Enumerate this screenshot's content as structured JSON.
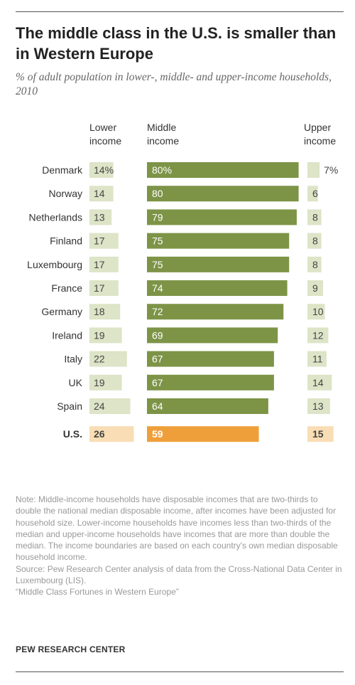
{
  "title": "The middle class in the U.S. is smaller than in Western Europe",
  "subtitle": "% of adult population in lower-, middle- and upper-income households, 2010",
  "column_headers": {
    "lower": [
      "Lower",
      "income"
    ],
    "middle": [
      "Middle",
      "income"
    ],
    "upper": [
      "Upper",
      "income"
    ]
  },
  "colors": {
    "lower_bar": "#dde4c7",
    "middle_bar": "#7d9447",
    "upper_bar": "#dde4c7",
    "us_lower_bar": "#f9ddb5",
    "us_middle_bar": "#ef9f3a",
    "us_upper_bar": "#f9ddb5",
    "label_dark": "#444444",
    "label_light": "#ffffff"
  },
  "chart_data": {
    "type": "bar",
    "title": "The middle class in the U.S. is smaller than in Western Europe",
    "categories": [
      "Denmark",
      "Norway",
      "Netherlands",
      "Finland",
      "Luxembourg",
      "France",
      "Germany",
      "Ireland",
      "Italy",
      "UK",
      "Spain",
      "U.S."
    ],
    "value_labels": {
      "lower": [
        "14%",
        "14",
        "13",
        "17",
        "17",
        "17",
        "18",
        "19",
        "22",
        "19",
        "24",
        "26"
      ],
      "middle": [
        "80%",
        "80",
        "79",
        "75",
        "75",
        "74",
        "72",
        "69",
        "67",
        "67",
        "64",
        "59"
      ],
      "upper": [
        "7%",
        "6",
        "8",
        "8",
        "8",
        "9",
        "10",
        "12",
        "11",
        "14",
        "13",
        "15"
      ]
    },
    "series": [
      {
        "name": "Lower income",
        "values": [
          14,
          14,
          13,
          17,
          17,
          17,
          18,
          19,
          22,
          19,
          24,
          26
        ]
      },
      {
        "name": "Middle income",
        "values": [
          80,
          80,
          79,
          75,
          75,
          74,
          72,
          69,
          67,
          67,
          64,
          59
        ]
      },
      {
        "name": "Upper income",
        "values": [
          7,
          6,
          8,
          8,
          8,
          9,
          10,
          12,
          11,
          14,
          13,
          15
        ]
      }
    ],
    "highlight_category": "U.S.",
    "grid": false
  },
  "note": [
    "Note: Middle-income households have disposable incomes that are two-thirds to double the national median disposable income, after incomes have been adjusted for household size. Lower-income households have incomes less than two-thirds of the median and upper-income households have incomes that are more than double the median. The income boundaries are based on each country's own median disposable household income.",
    "Source: Pew Research Center analysis of data from the Cross-National Data Center in Luxembourg (LIS).",
    "“Middle Class Fortunes in Western Europe”"
  ],
  "brand": "PEW RESEARCH CENTER"
}
